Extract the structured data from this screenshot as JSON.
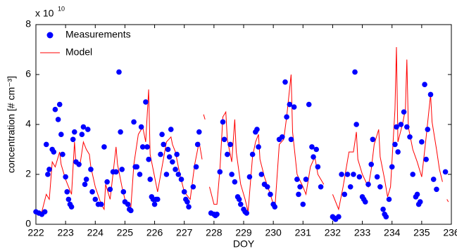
{
  "chart_data": {
    "type": "scatter",
    "x_label": "DOY",
    "y_label": "concentration [# cm⁻³]",
    "y_multiplier": {
      "base": "x 10",
      "exponent": "10"
    },
    "xlim": [
      222,
      236
    ],
    "xticks": [
      222,
      223,
      224,
      225,
      226,
      227,
      228,
      229,
      230,
      231,
      232,
      233,
      234,
      235,
      236
    ],
    "ylim": [
      0,
      8
    ],
    "yticks": [
      0,
      2,
      4,
      6,
      8
    ],
    "legend": "upper left",
    "series": [
      {
        "name": "Measurements",
        "color": "#0000ff",
        "style": "dots",
        "x": [
          222.0,
          222.1,
          222.2,
          222.3,
          222.35,
          222.4,
          222.45,
          222.55,
          222.6,
          222.65,
          222.75,
          222.8,
          222.85,
          222.9,
          223.0,
          223.05,
          223.1,
          223.15,
          223.2,
          223.25,
          223.3,
          223.35,
          223.45,
          223.55,
          223.6,
          223.65,
          223.7,
          223.75,
          223.85,
          223.9,
          224.0,
          224.1,
          224.2,
          224.3,
          224.4,
          224.5,
          224.6,
          224.7,
          224.8,
          224.85,
          224.9,
          224.95,
          225.0,
          225.1,
          225.15,
          225.2,
          225.3,
          225.35,
          225.4,
          225.5,
          225.55,
          225.6,
          225.7,
          225.75,
          225.8,
          225.85,
          225.9,
          225.95,
          226.0,
          226.05,
          226.1,
          226.2,
          226.25,
          226.3,
          226.4,
          226.45,
          226.5,
          226.55,
          226.6,
          226.7,
          226.75,
          226.8,
          226.9,
          227.0,
          227.05,
          227.1,
          227.15,
          227.3,
          227.4,
          227.45,
          227.5,
          227.9,
          228.0,
          228.05,
          228.1,
          228.2,
          228.3,
          228.35,
          228.45,
          228.55,
          228.6,
          228.7,
          228.8,
          228.85,
          228.9,
          229.0,
          229.05,
          229.1,
          229.2,
          229.3,
          229.4,
          229.45,
          229.5,
          229.6,
          229.7,
          229.8,
          229.9,
          230.0,
          230.05,
          230.2,
          230.3,
          230.4,
          230.45,
          230.55,
          230.6,
          230.7,
          230.8,
          230.85,
          230.9,
          231.0,
          231.1,
          231.2,
          231.3,
          231.35,
          231.45,
          231.5,
          231.6,
          232.0,
          232.05,
          232.1,
          232.2,
          232.3,
          232.4,
          232.5,
          232.6,
          232.7,
          232.75,
          232.8,
          232.9,
          233.0,
          233.05,
          233.1,
          233.2,
          233.3,
          233.35,
          233.5,
          233.6,
          233.7,
          233.75,
          233.8,
          233.9,
          234.0,
          234.1,
          234.15,
          234.2,
          234.3,
          234.4,
          234.5,
          234.6,
          234.7,
          234.8,
          234.85,
          234.9,
          234.95,
          235.0,
          235.1,
          235.15,
          235.2,
          235.3,
          235.4,
          235.5,
          235.8
        ],
        "values": [
          0.5,
          0.45,
          0.4,
          0.5,
          3.2,
          2.0,
          2.2,
          3.0,
          2.9,
          4.6,
          4.2,
          4.8,
          3.6,
          2.8,
          1.9,
          1.3,
          1.0,
          0.8,
          0.7,
          3.4,
          3.7,
          2.5,
          2.4,
          3.6,
          3.9,
          1.6,
          1.8,
          3.8,
          2.2,
          1.3,
          1.0,
          0.8,
          0.8,
          3.1,
          1.7,
          1.4,
          2.1,
          2.1,
          6.1,
          3.7,
          2.2,
          1.3,
          0.9,
          0.8,
          0.6,
          0.55,
          4.1,
          2.3,
          2.3,
          2.0,
          3.9,
          3.1,
          4.9,
          3.1,
          2.6,
          1.8,
          1.1,
          1.0,
          0.8,
          1.0,
          1.0,
          2.8,
          3.6,
          3.2,
          2.0,
          3.0,
          2.7,
          3.8,
          2.5,
          2.2,
          2.8,
          2.0,
          1.8,
          1.3,
          1.0,
          0.9,
          0.7,
          1.5,
          2.3,
          3.2,
          3.7,
          0.45,
          0.4,
          0.35,
          0.4,
          2.1,
          4.1,
          3.4,
          2.8,
          3.2,
          2.0,
          1.7,
          1.1,
          1.0,
          0.8,
          0.6,
          0.5,
          0.45,
          1.9,
          2.8,
          3.7,
          3.8,
          3.1,
          2.0,
          1.6,
          1.5,
          1.2,
          0.8,
          0.7,
          3.4,
          3.5,
          5.7,
          4.3,
          4.8,
          3.4,
          4.7,
          1.8,
          1.2,
          1.5,
          0.8,
          1.8,
          4.8,
          3.1,
          2.7,
          3.0,
          2.3,
          1.5,
          0.3,
          0.25,
          0.2,
          0.3,
          2.0,
          1.2,
          2.0,
          1.5,
          2.0,
          6.1,
          4.0,
          1.9,
          1.1,
          1.0,
          0.9,
          1.6,
          2.4,
          3.4,
          1.9,
          1.5,
          0.6,
          0.4,
          0.3,
          1.0,
          2.3,
          3.2,
          3.9,
          2.9,
          4.0,
          4.5,
          3.9,
          3.5,
          2.0,
          1.1,
          1.2,
          0.8,
          0.9,
          3.3,
          5.6,
          2.6,
          3.8,
          5.2,
          1.8,
          1.4,
          2.1
        ]
      },
      {
        "name": "Model",
        "color": "#ff0000",
        "style": "line",
        "x": [
          222.0,
          222.2,
          222.35,
          222.45,
          222.55,
          222.65,
          222.8,
          222.85,
          223.0,
          223.2,
          223.3,
          223.35,
          223.5,
          223.6,
          223.7,
          223.8,
          223.85,
          224.0,
          224.2,
          224.3,
          224.35,
          224.5,
          224.7,
          224.75,
          224.9,
          225.0,
          225.2,
          225.3,
          225.45,
          225.6,
          225.7,
          225.8,
          225.85,
          226.0,
          226.1,
          226.25,
          226.4,
          226.55,
          226.6,
          226.7,
          226.85,
          227.0,
          227.2,
          227.35,
          227.5,
          227.6,
          null,
          227.65,
          227.7,
          null,
          227.85,
          228.0,
          228.1,
          228.2,
          228.3,
          228.4,
          228.45,
          228.6,
          228.7,
          228.75,
          228.9,
          229.05,
          229.15,
          229.3,
          229.4,
          229.5,
          229.55,
          229.7,
          229.9,
          230.05,
          230.2,
          230.35,
          230.45,
          230.6,
          230.65,
          230.8,
          231.0,
          231.1,
          231.25,
          231.4,
          231.5,
          231.7,
          null,
          232.0,
          232.2,
          232.35,
          232.55,
          232.7,
          232.8,
          232.85,
          233.0,
          233.2,
          233.3,
          233.4,
          233.55,
          233.6,
          233.75,
          233.85,
          233.95,
          234.1,
          234.15,
          234.2,
          234.35,
          234.45,
          234.5,
          234.55,
          234.7,
          234.85,
          235.0,
          235.15,
          235.3,
          235.35,
          235.5,
          235.6,
          235.7,
          null,
          235.85,
          235.9
        ],
        "values": [
          0.5,
          0.5,
          1.2,
          1.0,
          2.5,
          2.3,
          2.9,
          2.4,
          1.8,
          1.2,
          3.3,
          2.4,
          2.5,
          3.3,
          3.0,
          2.8,
          2.3,
          1.5,
          0.8,
          0.6,
          1.6,
          1.0,
          3.1,
          2.4,
          1.5,
          1.0,
          0.7,
          2.4,
          3.6,
          3.9,
          3.3,
          5.4,
          2.8,
          1.9,
          1.3,
          2.3,
          3.3,
          3.5,
          3.2,
          2.9,
          2.0,
          1.3,
          1.0,
          2.4,
          3.3,
          2.6,
          null,
          4.4,
          4.2,
          null,
          1.5,
          0.8,
          0.8,
          2.2,
          4.3,
          4.5,
          3.4,
          2.5,
          4.2,
          2.9,
          1.6,
          1.0,
          0.5,
          2.7,
          3.3,
          3.6,
          2.6,
          1.9,
          1.2,
          0.6,
          3.2,
          3.4,
          4.3,
          6.0,
          3.7,
          2.0,
          1.5,
          1.2,
          2.3,
          2.7,
          2.0,
          1.6,
          null,
          1.2,
          0.6,
          1.5,
          2.9,
          2.9,
          3.7,
          2.6,
          2.0,
          1.5,
          2.2,
          3.2,
          3.8,
          2.7,
          1.8,
          1.1,
          1.5,
          4.6,
          7.1,
          3.3,
          4.0,
          4.6,
          6.6,
          3.9,
          3.0,
          2.5,
          1.9,
          3.5,
          5.2,
          4.1,
          3.0,
          2.2,
          1.7,
          null,
          1.0,
          0.9
        ]
      }
    ]
  }
}
